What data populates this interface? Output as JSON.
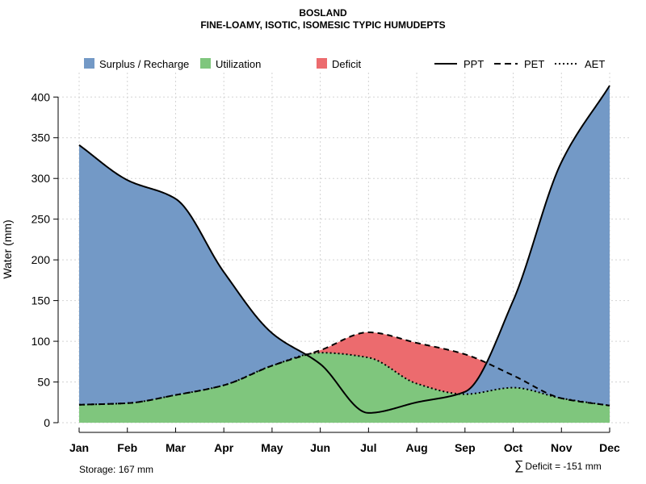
{
  "title": "BOSLAND",
  "subtitle": "FINE-LOAMY, ISOTIC, ISOMESIC TYPIC HUMUDEPTS",
  "legend": {
    "surplus": "Surplus / Recharge",
    "utilization": "Utilization",
    "deficit": "Deficit",
    "ppt": "PPT",
    "pet": "PET",
    "aet": "AET"
  },
  "colors": {
    "surplus": "#7399C6",
    "utilization": "#7FC67D",
    "deficit": "#EC6B6E",
    "line": "#000000",
    "grid": "#D3D3D3"
  },
  "footer": {
    "storage": "Storage: 167 mm",
    "deficit_symbol": "∑",
    "deficit": "Deficit = -151 mm"
  },
  "chart_data": {
    "type": "area",
    "title": "BOSLAND",
    "subtitle": "FINE-LOAMY, ISOTIC, ISOMESIC TYPIC HUMUDEPTS",
    "xlabel": "",
    "ylabel": "Water (mm)",
    "ylim": [
      0,
      430
    ],
    "yticks": [
      0,
      50,
      100,
      150,
      200,
      250,
      300,
      350,
      400
    ],
    "grid": true,
    "legend_position": "top",
    "categories": [
      "Jan",
      "Feb",
      "Mar",
      "Apr",
      "May",
      "Jun",
      "Jul",
      "Aug",
      "Sep",
      "Oct",
      "Nov",
      "Dec"
    ],
    "series": [
      {
        "name": "PPT",
        "style": "solid",
        "values": [
          341,
          298,
          275,
          185,
          110,
          72,
          12,
          25,
          38,
          150,
          320,
          414
        ]
      },
      {
        "name": "PET",
        "style": "dashed",
        "values": [
          22,
          24,
          34,
          46,
          70,
          89,
          111,
          98,
          84,
          58,
          30,
          21
        ]
      },
      {
        "name": "AET",
        "style": "dotted",
        "values": [
          22,
          24,
          34,
          46,
          70,
          86,
          80,
          48,
          35,
          43,
          30,
          21
        ]
      }
    ],
    "areas": [
      "Surplus / Recharge",
      "Utilization",
      "Deficit"
    ],
    "annotations": [
      "Storage: 167 mm",
      "∑ Deficit = -151 mm"
    ]
  }
}
